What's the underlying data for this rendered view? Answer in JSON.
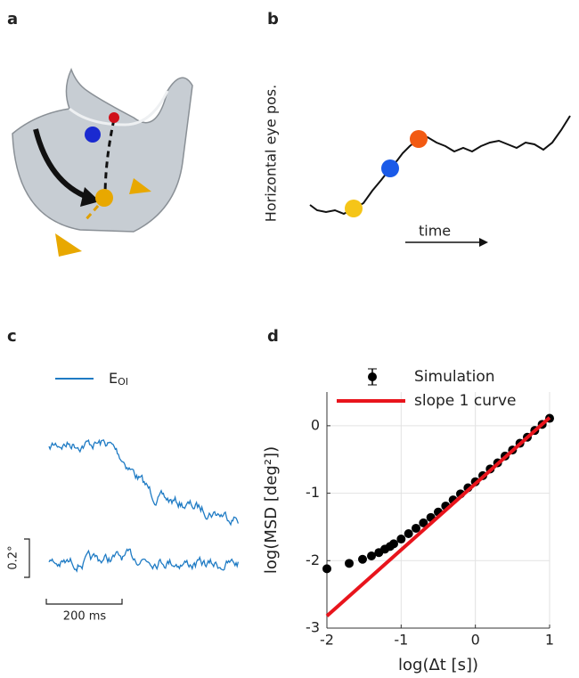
{
  "panel_labels": [
    "a",
    "b",
    "c",
    "d"
  ],
  "panel_b": {
    "y_label": "Horizontal eye pos.",
    "x_label": "time"
  },
  "panel_c": {
    "legend": {
      "main": "E",
      "sub": "OI"
    },
    "scale_y": "0.2°",
    "scale_x": "200 ms"
  },
  "chart_data": {
    "type": "scatter",
    "x_label": "log(Δt [s])",
    "y_label": "log(MSD [deg²])",
    "xlim": [
      -2,
      1
    ],
    "ylim": [
      -3,
      0.5
    ],
    "xticks": [
      -2,
      -1,
      0,
      1
    ],
    "yticks": [
      -3,
      -2,
      -1,
      0
    ],
    "grid": true,
    "series": [
      {
        "name": "Simulation",
        "color": "#000000",
        "style": "markers",
        "x": [
          -2,
          -1.7,
          -1.52,
          -1.4,
          -1.3,
          -1.22,
          -1.15,
          -1.1,
          -1.0,
          -0.9,
          -0.8,
          -0.7,
          -0.6,
          -0.5,
          -0.4,
          -0.3,
          -0.2,
          -0.1,
          0,
          0.1,
          0.2,
          0.3,
          0.4,
          0.5,
          0.6,
          0.7,
          0.8,
          0.9,
          1.0
        ],
        "values": [
          -2.12,
          -2.04,
          -1.98,
          -1.93,
          -1.88,
          -1.83,
          -1.79,
          -1.75,
          -1.68,
          -1.6,
          -1.52,
          -1.44,
          -1.36,
          -1.28,
          -1.19,
          -1.1,
          -1.01,
          -0.92,
          -0.83,
          -0.74,
          -0.64,
          -0.55,
          -0.45,
          -0.36,
          -0.26,
          -0.17,
          -0.07,
          0.02,
          0.11
        ]
      },
      {
        "name": "slope 1 curve",
        "color": "#e8141c",
        "style": "line",
        "x": [
          -2,
          1
        ],
        "values": [
          -2.82,
          0.12
        ]
      }
    ]
  }
}
